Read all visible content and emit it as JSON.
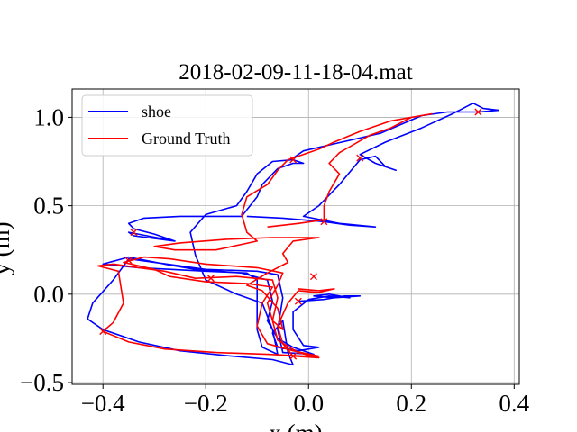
{
  "chart_data": {
    "type": "line",
    "title": "2018-02-09-11-18-04.mat",
    "xlabel": "x (m)",
    "ylabel": "y (m)",
    "xlim": [
      -0.46,
      0.41
    ],
    "ylim": [
      -0.51,
      1.16
    ],
    "x_ticks": [
      -0.4,
      -0.2,
      0.0,
      0.2,
      0.4
    ],
    "x_tick_labels": [
      "−0.4",
      "−0.2",
      "0.0",
      "0.2",
      "0.4"
    ],
    "y_ticks": [
      -0.5,
      0.0,
      0.5,
      1.0
    ],
    "y_tick_labels": [
      "−0.5",
      "0.0",
      "0.5",
      "1.0"
    ],
    "grid": true,
    "legend_position": "top-left",
    "series": [
      {
        "name": "shoe",
        "color": "#0000ff",
        "points": [
          [
            -0.02,
            -0.04
          ],
          [
            0.03,
            -0.03
          ],
          [
            0.07,
            -0.01
          ],
          [
            0.1,
            -0.01
          ],
          [
            0.05,
            -0.02
          ],
          [
            0.01,
            -0.01
          ],
          [
            0.04,
            0.0
          ],
          [
            0.08,
            -0.02
          ],
          [
            0.04,
            -0.01
          ],
          [
            0.0,
            -0.03
          ],
          [
            -0.03,
            -0.1
          ],
          [
            -0.03,
            -0.2
          ],
          [
            -0.01,
            -0.29
          ],
          [
            0.02,
            -0.3
          ],
          [
            -0.02,
            -0.32
          ],
          [
            -0.06,
            -0.3
          ],
          [
            -0.07,
            -0.22
          ],
          [
            -0.05,
            -0.15
          ],
          [
            -0.04,
            -0.33
          ],
          [
            -0.03,
            -0.4
          ],
          [
            -0.07,
            -0.37
          ],
          [
            -0.15,
            -0.35
          ],
          [
            -0.25,
            -0.32
          ],
          [
            -0.33,
            -0.27
          ],
          [
            -0.4,
            -0.2
          ],
          [
            -0.43,
            -0.14
          ],
          [
            -0.42,
            -0.05
          ],
          [
            -0.38,
            0.08
          ],
          [
            -0.35,
            0.2
          ],
          [
            -0.2,
            0.14
          ],
          [
            -0.1,
            0.13
          ],
          [
            -0.06,
            0.11
          ],
          [
            -0.05,
            -0.02
          ],
          [
            -0.06,
            -0.2
          ],
          [
            -0.05,
            -0.33
          ],
          [
            0.01,
            -0.34
          ],
          [
            -0.03,
            -0.3
          ],
          [
            -0.06,
            -0.25
          ],
          [
            -0.08,
            -0.15
          ],
          [
            -0.07,
            -0.04
          ],
          [
            -0.08,
            0.08
          ],
          [
            -0.13,
            0.12
          ],
          [
            -0.22,
            0.14
          ],
          [
            -0.28,
            0.17
          ],
          [
            -0.35,
            0.21
          ],
          [
            -0.4,
            0.17
          ],
          [
            -0.33,
            0.15
          ],
          [
            -0.2,
            0.13
          ],
          [
            -0.12,
            0.12
          ],
          [
            -0.1,
            0.08
          ],
          [
            -0.1,
            -0.05
          ],
          [
            -0.1,
            -0.2
          ],
          [
            -0.09,
            -0.3
          ],
          [
            -0.06,
            -0.34
          ],
          [
            -0.07,
            -0.2
          ],
          [
            -0.09,
            -0.05
          ],
          [
            -0.14,
            0.0
          ],
          [
            -0.2,
            0.08
          ],
          [
            -0.22,
            0.22
          ],
          [
            -0.23,
            0.35
          ],
          [
            -0.2,
            0.45
          ],
          [
            -0.14,
            0.5
          ],
          [
            -0.12,
            0.58
          ],
          [
            -0.1,
            0.68
          ],
          [
            -0.07,
            0.75
          ],
          [
            -0.03,
            0.76
          ],
          [
            -0.01,
            0.74
          ],
          [
            -0.03,
            0.74
          ],
          [
            -0.06,
            0.71
          ],
          [
            -0.09,
            0.62
          ],
          [
            -0.1,
            0.55
          ],
          [
            -0.13,
            0.44
          ],
          [
            -0.25,
            0.44
          ],
          [
            -0.32,
            0.43
          ],
          [
            -0.35,
            0.4
          ],
          [
            -0.34,
            0.37
          ],
          [
            -0.3,
            0.34
          ],
          [
            -0.26,
            0.3
          ],
          [
            -0.34,
            0.33
          ],
          [
            -0.35,
            0.35
          ],
          [
            -0.26,
            0.3
          ]
        ],
        "extra_segments": [
          [
            [
              -0.12,
              0.44
            ],
            [
              -0.05,
              0.43
            ],
            [
              0.03,
              0.41
            ],
            [
              0.08,
              0.39
            ],
            [
              0.13,
              0.38
            ],
            [
              0.06,
              0.4
            ],
            [
              -0.01,
              0.44
            ],
            [
              0.02,
              0.5
            ],
            [
              0.06,
              0.62
            ],
            [
              0.1,
              0.76
            ],
            [
              0.13,
              0.78
            ],
            [
              0.15,
              0.72
            ],
            [
              0.17,
              0.7
            ],
            [
              0.13,
              0.74
            ],
            [
              0.1,
              0.79
            ],
            [
              0.15,
              0.86
            ],
            [
              0.22,
              0.94
            ],
            [
              0.28,
              1.02
            ],
            [
              0.32,
              1.08
            ],
            [
              0.34,
              1.05
            ],
            [
              0.37,
              1.04
            ],
            [
              0.33,
              1.03
            ],
            [
              0.27,
              1.03
            ],
            [
              0.22,
              1.01
            ],
            [
              0.14,
              0.91
            ],
            [
              0.05,
              0.85
            ],
            [
              -0.01,
              0.81
            ],
            [
              -0.03,
              0.77
            ]
          ]
        ],
        "markers": []
      },
      {
        "name": "Ground Truth",
        "color": "#ff0000",
        "points": [
          [
            -0.02,
            0.03
          ],
          [
            0.02,
            0.02
          ],
          [
            0.05,
            0.03
          ],
          [
            0.02,
            0.01
          ],
          [
            -0.02,
            0.02
          ],
          [
            -0.04,
            -0.05
          ],
          [
            -0.06,
            -0.18
          ],
          [
            -0.05,
            -0.28
          ],
          [
            -0.03,
            -0.35
          ],
          [
            0.02,
            -0.36
          ],
          [
            -0.02,
            -0.33
          ],
          [
            -0.06,
            -0.26
          ],
          [
            -0.07,
            -0.15
          ],
          [
            -0.06,
            -0.02
          ],
          [
            -0.07,
            0.08
          ],
          [
            -0.14,
            0.1
          ],
          [
            -0.22,
            0.09
          ],
          [
            -0.28,
            0.13
          ],
          [
            -0.33,
            0.15
          ],
          [
            -0.38,
            0.17
          ],
          [
            -0.41,
            0.16
          ],
          [
            -0.37,
            0.13
          ],
          [
            -0.36,
            -0.05
          ],
          [
            -0.38,
            -0.16
          ],
          [
            -0.4,
            -0.21
          ],
          [
            -0.35,
            -0.27
          ],
          [
            -0.28,
            -0.31
          ],
          [
            -0.18,
            -0.33
          ],
          [
            -0.08,
            -0.34
          ],
          [
            -0.01,
            -0.35
          ],
          [
            0.02,
            -0.35
          ],
          [
            -0.03,
            -0.32
          ],
          [
            -0.08,
            -0.28
          ],
          [
            -0.1,
            -0.18
          ],
          [
            -0.09,
            -0.05
          ],
          [
            -0.07,
            0.04
          ],
          [
            -0.12,
            0.06
          ],
          [
            -0.2,
            0.07
          ],
          [
            -0.27,
            0.1
          ],
          [
            -0.3,
            0.14
          ],
          [
            -0.36,
            0.18
          ],
          [
            -0.32,
            0.21
          ],
          [
            -0.27,
            0.2
          ],
          [
            -0.2,
            0.17
          ],
          [
            -0.1,
            0.15
          ],
          [
            -0.05,
            0.12
          ],
          [
            -0.06,
            0.05
          ],
          [
            -0.08,
            -0.05
          ],
          [
            -0.07,
            -0.15
          ],
          [
            -0.05,
            -0.2
          ],
          [
            -0.06,
            -0.08
          ],
          [
            -0.09,
            0.02
          ],
          [
            -0.12,
            0.05
          ],
          [
            -0.08,
            0.12
          ],
          [
            -0.04,
            0.18
          ],
          [
            -0.05,
            0.23
          ],
          [
            -0.03,
            0.3
          ],
          [
            0.02,
            0.32
          ],
          [
            -0.07,
            0.32
          ],
          [
            -0.16,
            0.31
          ],
          [
            -0.25,
            0.29
          ],
          [
            -0.3,
            0.27
          ],
          [
            -0.26,
            0.25
          ],
          [
            -0.18,
            0.25
          ],
          [
            -0.1,
            0.3
          ],
          [
            -0.12,
            0.35
          ],
          [
            -0.13,
            0.45
          ],
          [
            -0.12,
            0.55
          ],
          [
            -0.08,
            0.62
          ],
          [
            -0.06,
            0.7
          ],
          [
            -0.04,
            0.76
          ],
          [
            -0.02,
            0.78
          ]
        ],
        "extra_segments": [
          [
            [
              -0.02,
              0.78
            ],
            [
              0.02,
              0.82
            ],
            [
              0.05,
              0.86
            ],
            [
              0.1,
              0.92
            ],
            [
              0.16,
              0.98
            ],
            [
              0.2,
              1.0
            ],
            [
              0.24,
              1.02
            ],
            [
              0.2,
              1.0
            ],
            [
              0.16,
              0.94
            ],
            [
              0.12,
              0.9
            ],
            [
              0.06,
              0.8
            ],
            [
              0.04,
              0.74
            ],
            [
              0.06,
              0.68
            ],
            [
              0.04,
              0.58
            ],
            [
              0.03,
              0.5
            ],
            [
              0.03,
              0.42
            ],
            [
              -0.02,
              0.4
            ],
            [
              -0.08,
              0.38
            ]
          ]
        ],
        "markers": [
          [
            0.33,
            1.03
          ],
          [
            -0.03,
            0.76
          ],
          [
            0.1,
            0.77
          ],
          [
            0.03,
            0.41
          ],
          [
            -0.34,
            0.35
          ],
          [
            -0.35,
            0.19
          ],
          [
            -0.19,
            0.09
          ],
          [
            0.01,
            0.1
          ],
          [
            -0.4,
            -0.21
          ],
          [
            -0.03,
            -0.35
          ],
          [
            -0.02,
            -0.04
          ]
        ]
      }
    ]
  }
}
